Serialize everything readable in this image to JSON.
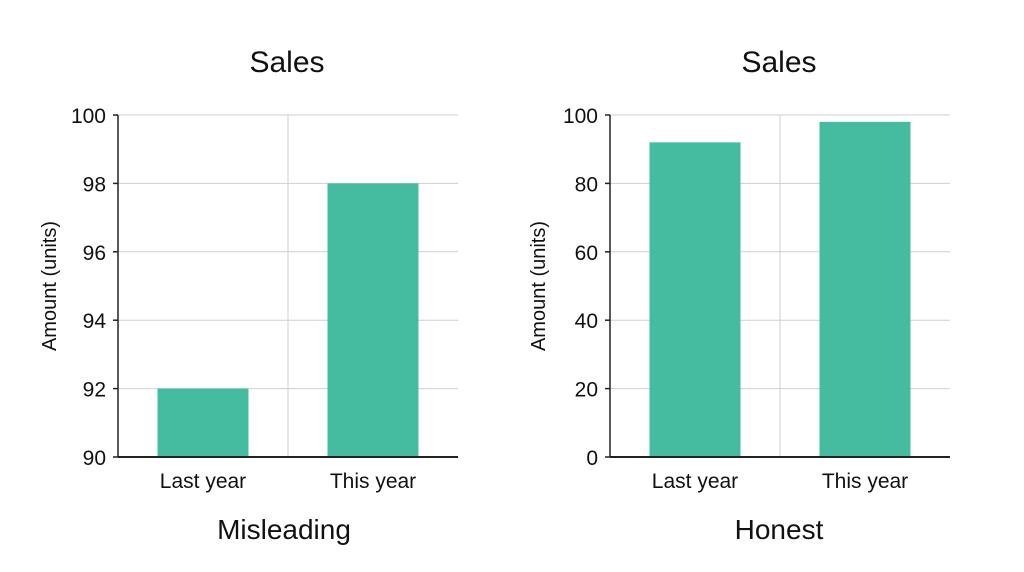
{
  "chart_data": [
    {
      "type": "bar",
      "title": "Sales",
      "caption": "Misleading",
      "xlabel": "",
      "ylabel": "Amount (units)",
      "categories": [
        "Last year",
        "This year"
      ],
      "values": [
        92,
        98
      ],
      "ylim": [
        90,
        100
      ],
      "yticks": [
        90,
        92,
        94,
        96,
        98,
        100
      ],
      "grid": true,
      "color": "#45bc9f"
    },
    {
      "type": "bar",
      "title": "Sales",
      "caption": "Honest",
      "xlabel": "",
      "ylabel": "Amount (units)",
      "categories": [
        "Last year",
        "This year"
      ],
      "values": [
        92,
        98
      ],
      "ylim": [
        0,
        100
      ],
      "yticks": [
        0,
        20,
        40,
        60,
        80,
        100
      ],
      "grid": true,
      "color": "#45bc9f"
    }
  ]
}
